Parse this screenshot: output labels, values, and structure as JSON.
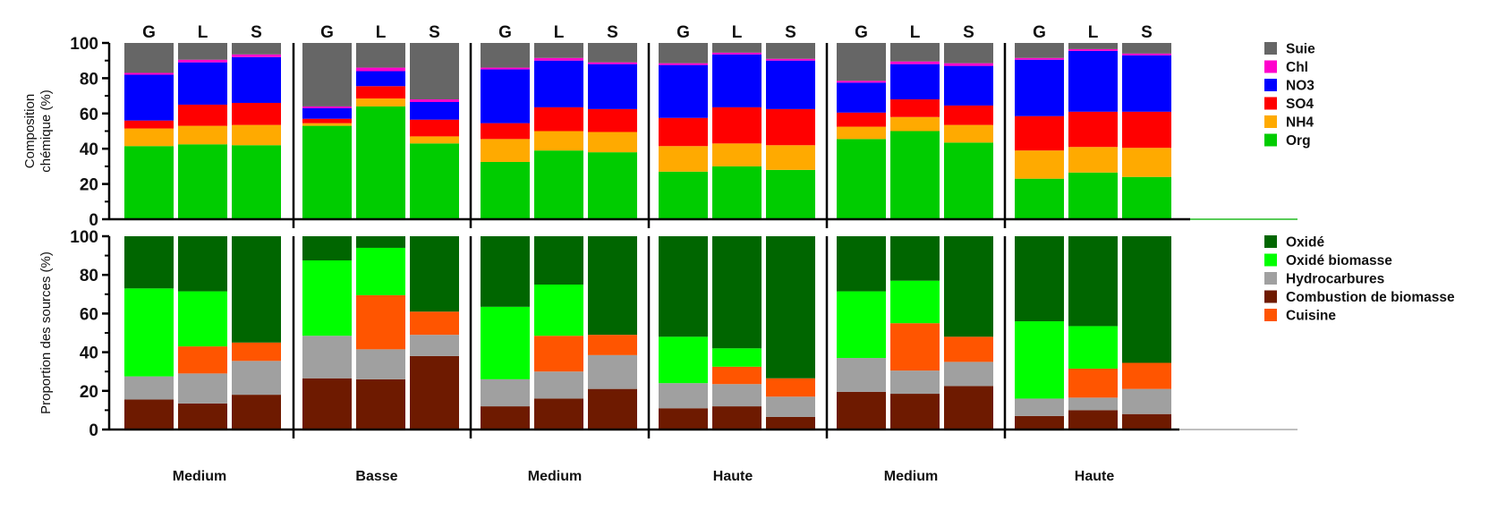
{
  "chart_data": [
    {
      "type": "bar",
      "stacked": true,
      "ylabel": "Composition chémique (%)",
      "ylim": [
        0,
        100
      ],
      "yticks": [
        0,
        20,
        40,
        60,
        80,
        100
      ],
      "columns": [
        "G",
        "L",
        "S",
        "G",
        "L",
        "S",
        "G",
        "L",
        "S",
        "G",
        "L",
        "S",
        "G",
        "L",
        "S",
        "G",
        "L",
        "S"
      ],
      "groups": [
        "Medium",
        "Basse",
        "Medium",
        "Haute",
        "Medium",
        "Haute"
      ],
      "legend": [
        "Suie",
        "Chl",
        "NO3",
        "SO4",
        "NH4",
        "Org"
      ],
      "series": [
        {
          "name": "Org",
          "color": "#00cc00",
          "values": [
            41.5,
            42.5,
            42,
            53,
            64,
            43,
            32.5,
            39,
            38,
            27,
            30,
            28,
            45.5,
            50,
            43.5,
            23,
            26.5,
            24
          ]
        },
        {
          "name": "NH4",
          "color": "#ffaa00",
          "values": [
            10,
            10.5,
            11.5,
            1.5,
            4.5,
            4,
            13,
            11,
            11.5,
            14.5,
            13,
            14,
            7,
            8,
            10,
            16,
            14.5,
            16.5
          ]
        },
        {
          "name": "SO4",
          "color": "#ff0000",
          "values": [
            4.5,
            12,
            12.5,
            2.5,
            7,
            9.5,
            9,
            13.5,
            13,
            16,
            20.5,
            20.5,
            8,
            10,
            11,
            19.5,
            20,
            20.5
          ]
        },
        {
          "name": "NO3",
          "color": "#0000ff",
          "values": [
            26,
            24,
            26,
            6,
            8.5,
            10,
            30.5,
            26.5,
            25.5,
            30,
            30,
            27.5,
            17,
            20,
            22.5,
            32,
            34.5,
            32
          ]
        },
        {
          "name": "Chl",
          "color": "#ff00cc",
          "values": [
            1,
            1.5,
            1.5,
            1,
            2,
            1.5,
            1,
            1.5,
            1,
            1,
            1,
            1,
            1,
            1.5,
            1.5,
            1,
            1,
            1
          ]
        },
        {
          "name": "Suie",
          "color": "#666666",
          "values": [
            17,
            9.5,
            6.5,
            36,
            14,
            32,
            14,
            8.5,
            11,
            11.5,
            5.5,
            9,
            21.5,
            10.5,
            11.5,
            8.5,
            3.5,
            6
          ]
        }
      ]
    },
    {
      "type": "bar",
      "stacked": true,
      "ylabel": "Proportion des sources (%)",
      "ylim": [
        0,
        100
      ],
      "yticks": [
        0,
        20,
        40,
        60,
        80,
        100
      ],
      "columns": [
        "",
        "",
        "",
        "",
        "",
        "",
        "",
        "",
        "",
        "",
        "",
        "",
        "",
        "",
        "",
        "",
        "",
        ""
      ],
      "groups": [
        "Medium",
        "Basse",
        "Medium",
        "Haute",
        "Medium",
        "Haute"
      ],
      "legend": [
        "Oxidé",
        "Oxidé biomasse",
        "Hydrocarbures",
        "Combustion de biomasse",
        "Cuisine"
      ],
      "series": [
        {
          "name": "Combustion de biomasse",
          "color": "#6e1a00",
          "values": [
            15.5,
            13.5,
            18,
            26.5,
            26,
            38,
            12,
            16,
            21,
            11,
            12,
            6.5,
            19.5,
            18.5,
            22.5,
            7,
            10,
            8
          ]
        },
        {
          "name": "Hydrocarbures",
          "color": "#a0a0a0",
          "values": [
            12,
            15.5,
            17.5,
            22,
            15.5,
            11,
            14,
            14,
            17.5,
            13,
            11.5,
            10.5,
            17.5,
            12,
            12.5,
            9,
            6.5,
            13
          ]
        },
        {
          "name": "Cuisine",
          "color": "#ff5500",
          "values": [
            0,
            14,
            9.5,
            0,
            28,
            12,
            0,
            18.5,
            10.5,
            0,
            9,
            9.5,
            0,
            24.5,
            13,
            0,
            15,
            13.5
          ]
        },
        {
          "name": "Oxidé biomasse",
          "color": "#00ff00",
          "values": [
            45.5,
            28.5,
            0,
            39,
            24.5,
            0,
            37.5,
            26.5,
            0,
            24,
            9.5,
            0,
            34.5,
            22,
            0,
            40,
            22,
            0
          ]
        },
        {
          "name": "Oxidé",
          "color": "#006600",
          "values": [
            27,
            28.5,
            55,
            12.5,
            6,
            39,
            36.5,
            25,
            51,
            52,
            58,
            73.5,
            28.5,
            23,
            52,
            44,
            46.5,
            65.5
          ]
        }
      ]
    }
  ]
}
